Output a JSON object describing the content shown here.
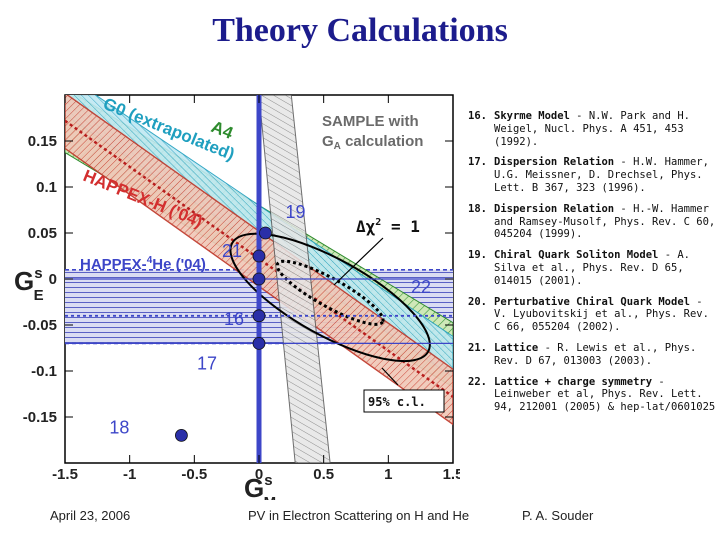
{
  "slide": {
    "title": "Theory Calculations",
    "footer_left": "April 23, 2006",
    "footer_center": "PV in Electron Scattering on H and He",
    "footer_right": "P. A. Souder"
  },
  "chart_data": {
    "type": "scatter",
    "title": "",
    "xlabel": "G",
    "xlabel_sup": "s",
    "xlabel_sub": "M",
    "ylabel": "G",
    "ylabel_sup": "s",
    "ylabel_sub": "E",
    "xlim": [
      -1.5,
      1.5
    ],
    "ylim": [
      -0.2,
      0.2
    ],
    "x_ticks": [
      "-1.5",
      "-1",
      "-0.5",
      "0",
      "0.5",
      "1",
      "1.5"
    ],
    "y_ticks": [
      "0.15",
      "0.1",
      "0.05",
      "0",
      "-0.05",
      "-0.1",
      "-0.15"
    ],
    "bands": [
      {
        "name": "A4",
        "color": "#4caf50"
      },
      {
        "name": "G0 (extrapolated)",
        "color": "#29b6d6"
      },
      {
        "name": "HAPPEX-H ('04)",
        "color": "#d32f2f"
      },
      {
        "name": "HAPPEX-4He ('04)",
        "color": "#3d46c8"
      },
      {
        "name": "SAMPLE with GA calculation",
        "color": "#777777"
      }
    ],
    "band_labels": {
      "a4": "A4",
      "g0": "G0 (extrapolated)",
      "happex_h": "HAPPEX-H ('04)",
      "sample_line1": "SAMPLE with",
      "sample_line2_main": "G",
      "sample_line2_sub": "A",
      "sample_line2_rest": " calculation",
      "he_main": "HAPPEX-",
      "he_sup": "4",
      "he_rest": "He ('04)"
    },
    "annotations": {
      "chi2_delta": "Δ",
      "chi2_chi": "χ",
      "chi2_sup": "2",
      "chi2_value": " = 1",
      "ellipse_95": "95% c.l."
    },
    "points": [
      {
        "label": "16",
        "x": 0.0,
        "y": -0.04
      },
      {
        "label": "17",
        "x": 0.0,
        "y": -0.07
      },
      {
        "label": "18",
        "x": -0.6,
        "y": -0.17
      },
      {
        "label": "19",
        "x": 0.05,
        "y": 0.05
      },
      {
        "label": "21",
        "x": 0.0,
        "y": 0.025
      },
      {
        "label": "22",
        "x": 0.0,
        "y": 0.0
      }
    ]
  },
  "references": [
    {
      "num": "16.",
      "title": "Skyrme Model",
      "text": " - N.W. Park and H. Weigel, Nucl. Phys. A 451, 453 (1992)."
    },
    {
      "num": "17.",
      "title": "Dispersion Relation",
      "text": " - H.W. Hammer, U.G. Meissner, D. Drechsel, Phys. Lett. B 367, 323 (1996)."
    },
    {
      "num": "18.",
      "title": "Dispersion Relation",
      "text": " - H.-W. Hammer and Ramsey-Musolf, Phys. Rev. C 60, 045204 (1999)."
    },
    {
      "num": "19.",
      "title": "Chiral Quark Soliton Model",
      "text": " - A. Silva et al., Phys. Rev. D 65, 014015 (2001)."
    },
    {
      "num": "20.",
      "title": "Perturbative Chiral Quark Model",
      "text": " - V. Lyubovitskij et al., Phys. Rev. C 66, 055204 (2002)."
    },
    {
      "num": "21.",
      "title": "Lattice",
      "text": " - R. Lewis et al., Phys. Rev. D 67, 013003 (2003)."
    },
    {
      "num": "22.",
      "title": "Lattice + charge symmetry",
      "text": " - Leinweber et al, Phys. Rev. Lett. 94, 212001 (2005) & hep-lat/0601025"
    }
  ]
}
